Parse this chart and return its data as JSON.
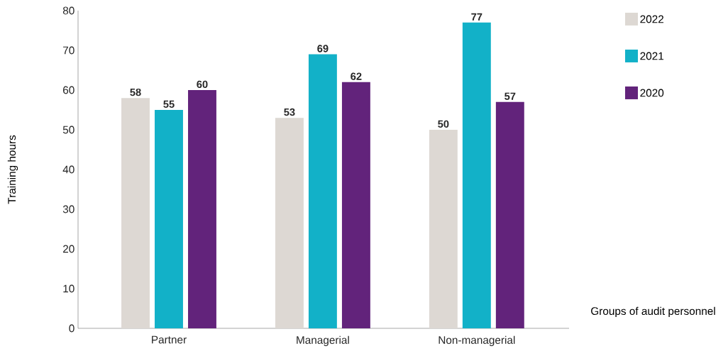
{
  "chart_data": {
    "type": "bar",
    "xlabel": "Groups of audit personnel",
    "ylabel": "Training hours",
    "categories": [
      "Partner",
      "Managerial",
      "Non-managerial"
    ],
    "series": [
      {
        "name": "2022",
        "color": "#ddd8d3",
        "values": [
          58,
          53,
          50
        ]
      },
      {
        "name": "2021",
        "color": "#12b1c8",
        "values": [
          55,
          69,
          77
        ]
      },
      {
        "name": "2020",
        "color": "#62237b",
        "values": [
          60,
          62,
          57
        ]
      }
    ],
    "ylim": [
      0,
      80
    ],
    "yticks": [
      0,
      10,
      20,
      30,
      40,
      50,
      60,
      70,
      80
    ],
    "grid": false,
    "legend": "top right",
    "data_labels": true
  }
}
